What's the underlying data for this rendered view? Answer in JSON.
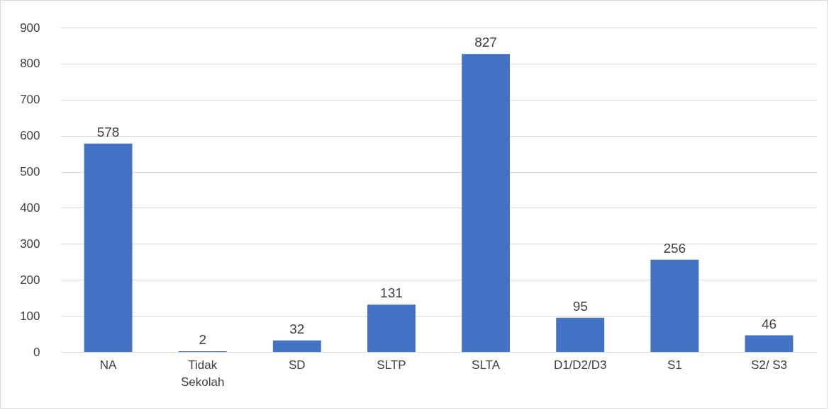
{
  "chart_data": {
    "type": "bar",
    "categories": [
      "NA",
      "Tidak Sekolah",
      "SD",
      "SLTP",
      "SLTA",
      "D1/D2/D3",
      "S1",
      "S2/ S3"
    ],
    "values": [
      578,
      2,
      32,
      131,
      827,
      95,
      256,
      46
    ],
    "color": "#4472c4",
    "ylim": [
      0,
      900
    ],
    "yticks": [
      0,
      100,
      200,
      300,
      400,
      500,
      600,
      700,
      800,
      900
    ],
    "grid": "y",
    "data_labels": true
  }
}
